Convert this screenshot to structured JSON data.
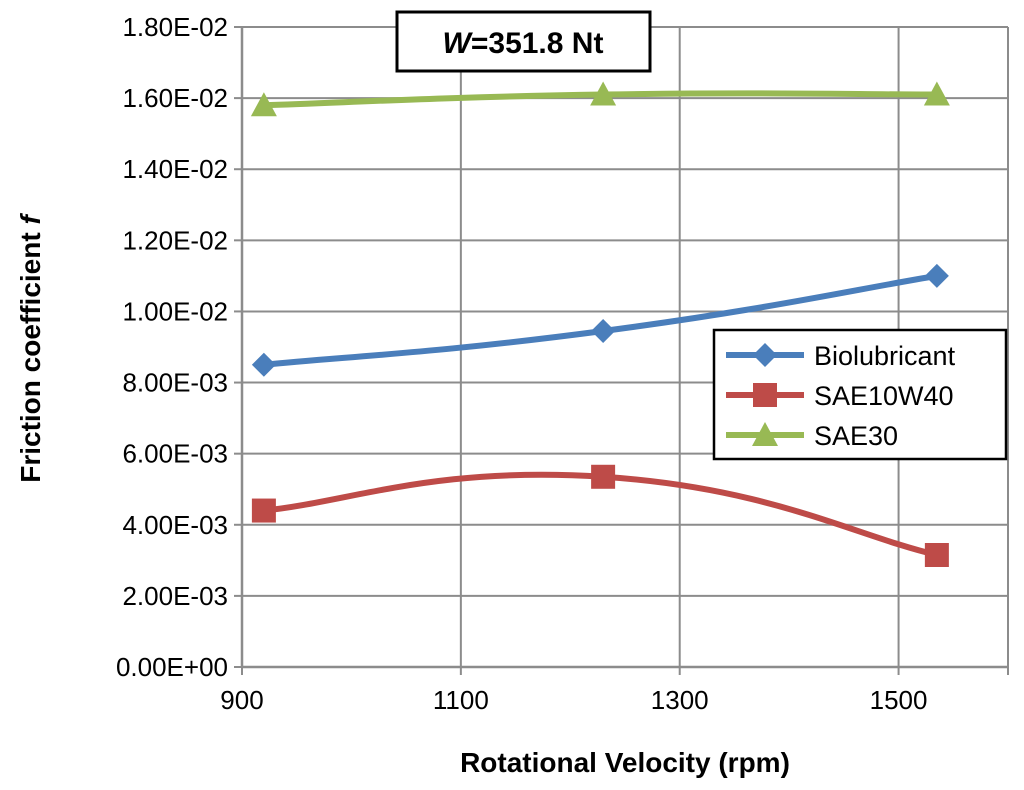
{
  "chart_data": {
    "type": "line",
    "annotation": {
      "prefix": "W",
      "value": "=351.8 Nt"
    },
    "xlabel": "Rotational Velocity (rpm)",
    "ylabel_main": "Friction coefficient ",
    "ylabel_symbol": "f",
    "xlim": [
      900,
      1600
    ],
    "ylim": [
      0,
      0.018
    ],
    "x_ticks": [
      {
        "value": 900,
        "label": "900"
      },
      {
        "value": 1100,
        "label": "1100"
      },
      {
        "value": 1300,
        "label": "1300"
      },
      {
        "value": 1500,
        "label": "1500"
      }
    ],
    "x_grid": [
      900,
      1100,
      1300,
      1500,
      1600
    ],
    "y_ticks": [
      {
        "value": 0.0,
        "label": "0.00E+00"
      },
      {
        "value": 0.002,
        "label": "2.00E-03"
      },
      {
        "value": 0.004,
        "label": "4.00E-03"
      },
      {
        "value": 0.006,
        "label": "6.00E-03"
      },
      {
        "value": 0.008,
        "label": "8.00E-03"
      },
      {
        "value": 0.01,
        "label": "1.00E-02"
      },
      {
        "value": 0.012,
        "label": "1.20E-02"
      },
      {
        "value": 0.014,
        "label": "1.40E-02"
      },
      {
        "value": 0.016,
        "label": "1.60E-02"
      },
      {
        "value": 0.018,
        "label": "1.80E-02"
      }
    ],
    "grid": true,
    "legend_position": "right",
    "series": [
      {
        "name": "Biolubricant",
        "color": "#4a7ebb",
        "marker": "diamond",
        "x": [
          920,
          1230,
          1535
        ],
        "y": [
          0.0085,
          0.00945,
          0.011
        ]
      },
      {
        "name": "SAE10W40",
        "color": "#be4b48",
        "marker": "square",
        "x": [
          920,
          1230,
          1535
        ],
        "y": [
          0.0044,
          0.00535,
          0.00315
        ]
      },
      {
        "name": "SAE30",
        "color": "#98b954",
        "marker": "triangle",
        "x": [
          920,
          1230,
          1535
        ],
        "y": [
          0.0158,
          0.0161,
          0.0161
        ]
      }
    ]
  }
}
